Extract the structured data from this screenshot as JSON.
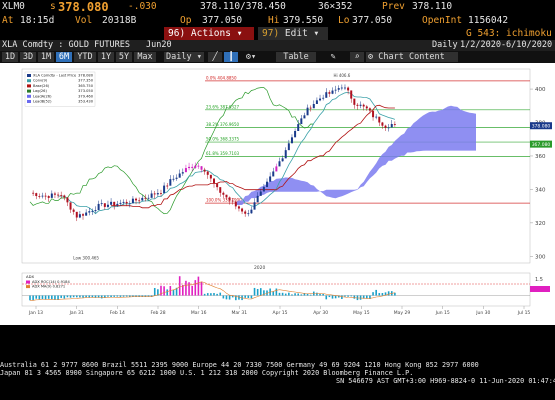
{
  "quote": {
    "ticker": "XLM0",
    "last_prefix": "s",
    "last": "378.080",
    "change": "-.030",
    "bid_ask": "378.110/378.450",
    "size": "36×352",
    "prev_label": "Prev",
    "prev": "378.110",
    "time_label": "At",
    "time": "18:15d",
    "vol_label": "Vol",
    "vol": "20318B",
    "open_label": "Op",
    "open": "377.050",
    "high_label": "Hi",
    "high": "379.550",
    "low_label": "Lo",
    "low": "377.050",
    "oi_label": "OpenInt",
    "oi": "1156042"
  },
  "toolbar": {
    "actions_num": "96)",
    "actions_label": "Actions",
    "edit_num": "97)",
    "edit_label": "Edit",
    "function_label": "G 543: ichimoku"
  },
  "title_bar": {
    "security": "XLA Comdty : GOLD FUTURES",
    "contract": "Jun20",
    "period_label": "Daily",
    "range": "1/2/2020-6/10/2020"
  },
  "tabs": {
    "items": [
      "1D",
      "3D",
      "1M",
      "6M",
      "YTD",
      "1Y",
      "5Y",
      "Max"
    ],
    "active_index": 3,
    "frequency": "Daily",
    "table_label": "Table",
    "chart_content_label": "Chart Content"
  },
  "legend": {
    "items": [
      {
        "label": "XLA Comdty - Last Price",
        "value": "378.080",
        "color": "#1a3a8a"
      },
      {
        "label": "Conv(9)",
        "value": "377.350",
        "color": "#3aa0a8"
      },
      {
        "label": "Base(26)",
        "value": "365.750",
        "color": "#b01010"
      },
      {
        "label": "Lag(26)",
        "value": "373.050",
        "color": "#2a7a2a"
      },
      {
        "label": "LeadA(26)",
        "value": "379.460",
        "color": "#6a6af0"
      },
      {
        "label": "LeadB(52)",
        "value": "353.430",
        "color": "#6a6af0"
      }
    ]
  },
  "sub_legend": {
    "title": "ADX",
    "items": [
      {
        "label": "ADX ROC(14)",
        "value": "0.9184",
        "color": "#e020c0"
      },
      {
        "label": "ADX MA(9)",
        "value": "0.8271",
        "color": "#e08030"
      }
    ]
  },
  "annotations": {
    "fib_levels": [
      {
        "label": "0.0% 404.8850",
        "price": 404.9
      },
      {
        "label": "23.6% 387.6327",
        "price": 387.6
      },
      {
        "label": "38.2% 376.9650",
        "price": 377.0
      },
      {
        "label": "50.0% 368.3375",
        "price": 368.3
      },
      {
        "label": "61.8% 359.7103",
        "price": 359.7
      },
      {
        "label": "100.0% 331.7900",
        "price": 331.8
      }
    ],
    "high_label": "Hi 406.6",
    "low_label": "Low 300.465",
    "last_badge": "378.080",
    "lead_badge": "367.080"
  },
  "axes": {
    "y_ticks": [
      "400",
      "380",
      "360",
      "340",
      "320",
      "300"
    ],
    "x_ticks": [
      "Jan 13",
      "Jan 31",
      "Feb 14",
      "Feb 28",
      "Mar 16",
      "Mar 31",
      "Apr 15",
      "Apr 30",
      "May 15",
      "May 29",
      "Jun 15",
      "Jun 30",
      "Jul 15"
    ],
    "year_label": "2020",
    "sub_y_ticks": [
      "1.5",
      "1"
    ]
  },
  "footer": {
    "line1": "Australia 61 2 9777 8600  Brazil 5511 2395 9000  Europe 44 20 7330 7500  Germany 49 69 9204 1210  Hong Kong 852 2977 6000",
    "line2": "Japan 81 3 4565 8900          Singapore 65 6212 1000          U.S. 1 212 318 2000          Copyright 2020 Bloomberg Finance L.P.",
    "line3": "SN 546679 AST  GMT+3:00 H969-8824-0  11-Jun-2020 01:47:40"
  },
  "colors": {
    "amber": "#f0a030",
    "active_tab": "#2f6fb8",
    "actions_bg": "#8a1010",
    "cloud": "#6a6af0"
  }
}
